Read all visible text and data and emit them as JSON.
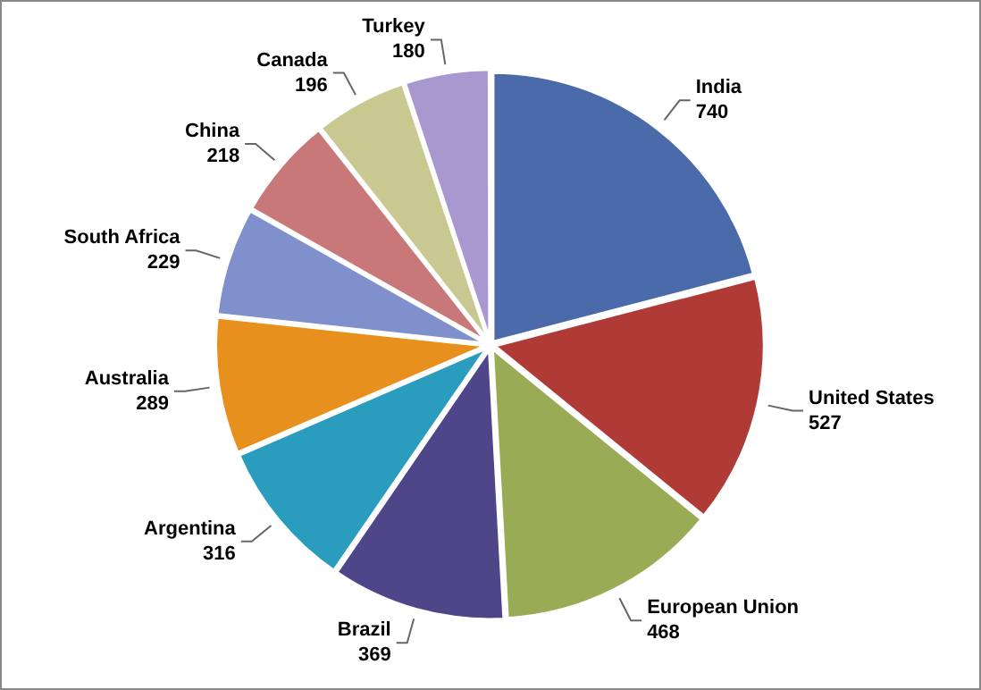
{
  "chart_data": {
    "type": "pie",
    "categories": [
      "India",
      "United States",
      "European Union",
      "Brazil",
      "Argentina",
      "Australia",
      "South Africa",
      "China",
      "Canada",
      "Turkey"
    ],
    "values": [
      740,
      527,
      468,
      369,
      316,
      289,
      229,
      218,
      196,
      180
    ],
    "colors": [
      "#4a6aaa",
      "#b03a36",
      "#9aab55",
      "#4e4688",
      "#2a9cbd",
      "#e8901e",
      "#8090cc",
      "#c87878",
      "#c8c890",
      "#a898d0"
    ],
    "data_labels": true,
    "legend": false
  }
}
